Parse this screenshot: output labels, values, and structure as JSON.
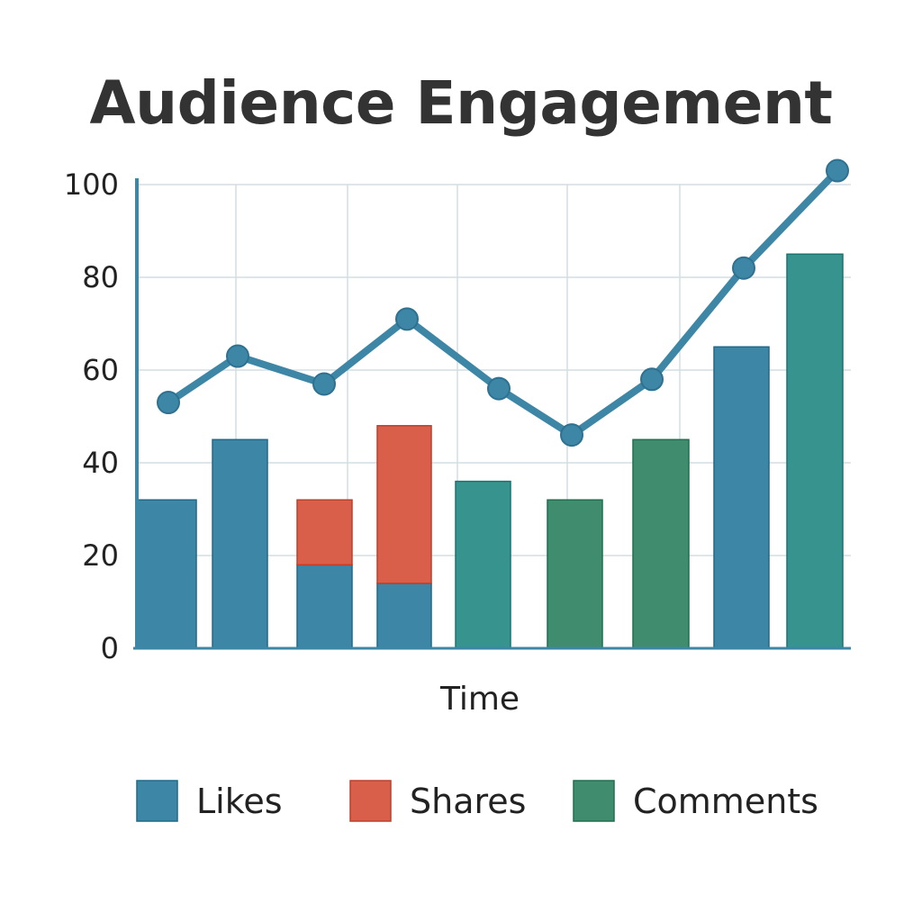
{
  "chart_data": {
    "type": "bar",
    "title": "Audience Engagement",
    "xlabel": "Time",
    "ylabel": "",
    "ylim": [
      0,
      100
    ],
    "yticks": [
      0,
      20,
      40,
      60,
      80,
      100
    ],
    "grid": true,
    "legend_position": "bottom",
    "categories": [
      "",
      "",
      "",
      "",
      "",
      "",
      "",
      "",
      ""
    ],
    "series": [
      {
        "name": "Likes",
        "color": "#3d86a6",
        "values": [
          32,
          45,
          18,
          14,
          0,
          0,
          0,
          65,
          0
        ]
      },
      {
        "name": "Shares",
        "color": "#d95f4a",
        "values": [
          0,
          0,
          14,
          34,
          0,
          0,
          0,
          0,
          0
        ]
      },
      {
        "name": "Comments",
        "color": "#3f8c6e",
        "values": [
          0,
          0,
          0,
          0,
          0,
          32,
          45,
          0,
          0
        ]
      }
    ],
    "teal_bars": {
      "color": "#36938e",
      "values": [
        0,
        0,
        0,
        0,
        36,
        0,
        0,
        0,
        85
      ]
    },
    "trend_line": {
      "color": "#3d86a6",
      "values": [
        53,
        63,
        57,
        71,
        56,
        46,
        58,
        82,
        103
      ]
    }
  }
}
